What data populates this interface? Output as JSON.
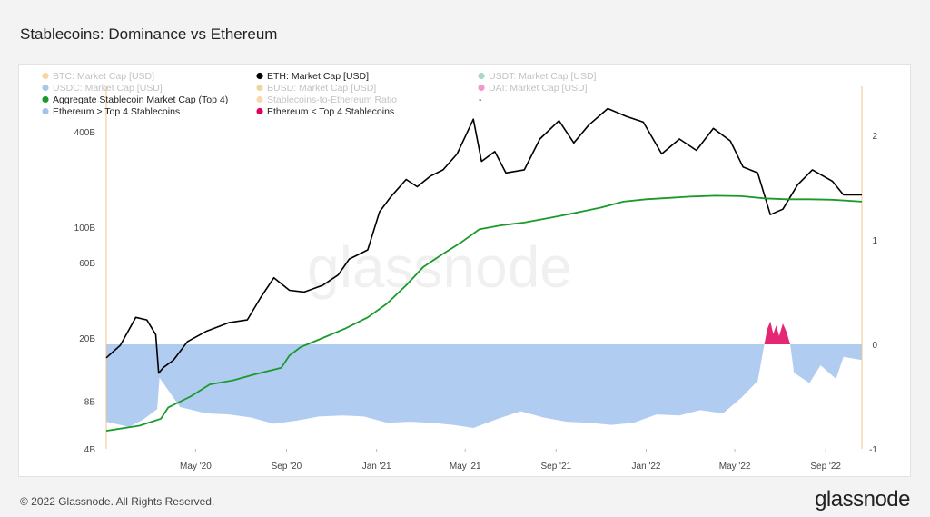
{
  "title": "Stablecoins: Dominance vs Ethereum",
  "footer": {
    "copyright": "© 2022 Glassnode. All Rights Reserved.",
    "brand": "glassnode"
  },
  "watermark": "glassnode",
  "chart_data": {
    "type": "line",
    "title": "Stablecoins: Dominance vs Ethereum",
    "legend_position": "top-left",
    "legend": [
      {
        "label": "BTC: Market Cap [USD]",
        "color": "#f7931a",
        "active": false
      },
      {
        "label": "ETH: Market Cap [USD]",
        "color": "#000000",
        "active": true
      },
      {
        "label": "USDT: Market Cap [USD]",
        "color": "#26a17b",
        "active": false
      },
      {
        "label": "USDC: Market Cap [USD]",
        "color": "#2775ca",
        "active": false
      },
      {
        "label": "BUSD: Market Cap [USD]",
        "color": "#c9a100",
        "active": false
      },
      {
        "label": "DAI: Market Cap [USD]",
        "color": "#e6007a",
        "active": false
      },
      {
        "label": "Aggregate Stablecoin Market Cap (Top 4)",
        "color": "#1a9a2a",
        "active": true
      },
      {
        "label": "Stablecoins-to-Ethereum Ratio",
        "color": "#e8a23a",
        "active": false
      },
      {
        "label": "-",
        "color": "",
        "active": true
      },
      {
        "label": "Ethereum > Top 4 Stablecoins",
        "color": "#a3c3ee",
        "active": true
      },
      {
        "label": "Ethereum < Top 4 Stablecoins",
        "color": "#e0005c",
        "active": true
      }
    ],
    "x_ticks": [
      "May '20",
      "Sep '20",
      "Jan '21",
      "May '21",
      "Sep '21",
      "Jan '22",
      "May '22",
      "Sep '22"
    ],
    "x_tick_dates": [
      "2020-05-01",
      "2020-09-01",
      "2021-01-01",
      "2021-05-01",
      "2021-09-01",
      "2022-01-01",
      "2022-05-01",
      "2022-09-01"
    ],
    "x_range": [
      "2020-01-01",
      "2022-10-20"
    ],
    "y_left": {
      "scale": "log",
      "ticks": [
        "4B",
        "8B",
        "20B",
        "60B",
        "100B",
        "400B"
      ],
      "tick_values": [
        4,
        8,
        20,
        60,
        100,
        400
      ],
      "unit": "B"
    },
    "y_right": {
      "scale": "linear",
      "ticks": [
        "-1",
        "0",
        "1",
        "2"
      ],
      "tick_values": [
        -1,
        0,
        1,
        2
      ],
      "range": [
        -1,
        2.25
      ]
    },
    "series": [
      {
        "name": "ETH: Market Cap [USD]",
        "axis": "left",
        "color": "#000000",
        "points": [
          [
            "2020-01-01",
            15
          ],
          [
            "2020-01-20",
            18
          ],
          [
            "2020-02-10",
            27
          ],
          [
            "2020-02-25",
            26
          ],
          [
            "2020-03-08",
            21
          ],
          [
            "2020-03-12",
            12
          ],
          [
            "2020-03-18",
            13
          ],
          [
            "2020-04-01",
            14.5
          ],
          [
            "2020-04-20",
            19
          ],
          [
            "2020-05-15",
            22
          ],
          [
            "2020-06-15",
            25
          ],
          [
            "2020-07-10",
            26
          ],
          [
            "2020-07-28",
            36
          ],
          [
            "2020-08-15",
            48
          ],
          [
            "2020-09-05",
            40
          ],
          [
            "2020-09-25",
            39
          ],
          [
            "2020-10-20",
            43
          ],
          [
            "2020-11-10",
            50
          ],
          [
            "2020-11-25",
            63
          ],
          [
            "2020-12-20",
            72
          ],
          [
            "2021-01-05",
            125
          ],
          [
            "2021-01-20",
            155
          ],
          [
            "2021-02-10",
            200
          ],
          [
            "2021-02-25",
            180
          ],
          [
            "2021-03-15",
            210
          ],
          [
            "2021-04-01",
            230
          ],
          [
            "2021-04-20",
            290
          ],
          [
            "2021-05-12",
            480
          ],
          [
            "2021-05-23",
            260
          ],
          [
            "2021-06-10",
            300
          ],
          [
            "2021-06-25",
            220
          ],
          [
            "2021-07-20",
            230
          ],
          [
            "2021-08-10",
            360
          ],
          [
            "2021-09-05",
            470
          ],
          [
            "2021-09-25",
            340
          ],
          [
            "2021-10-15",
            440
          ],
          [
            "2021-11-10",
            560
          ],
          [
            "2021-12-05",
            500
          ],
          [
            "2021-12-28",
            460
          ],
          [
            "2022-01-22",
            290
          ],
          [
            "2022-02-15",
            360
          ],
          [
            "2022-03-10",
            305
          ],
          [
            "2022-04-02",
            420
          ],
          [
            "2022-04-25",
            350
          ],
          [
            "2022-05-12",
            240
          ],
          [
            "2022-06-01",
            220
          ],
          [
            "2022-06-18",
            120
          ],
          [
            "2022-07-05",
            130
          ],
          [
            "2022-07-25",
            185
          ],
          [
            "2022-08-14",
            230
          ],
          [
            "2022-09-10",
            195
          ],
          [
            "2022-09-25",
            160
          ],
          [
            "2022-10-20",
            160
          ]
        ]
      },
      {
        "name": "Aggregate Stablecoin Market Cap (Top 4)",
        "axis": "left",
        "color": "#1a9a2a",
        "points": [
          [
            "2020-01-01",
            5.2
          ],
          [
            "2020-02-15",
            5.6
          ],
          [
            "2020-03-15",
            6.2
          ],
          [
            "2020-03-25",
            7.3
          ],
          [
            "2020-04-25",
            8.6
          ],
          [
            "2020-05-20",
            10.2
          ],
          [
            "2020-06-20",
            10.8
          ],
          [
            "2020-07-20",
            11.8
          ],
          [
            "2020-08-25",
            13
          ],
          [
            "2020-09-05",
            15.5
          ],
          [
            "2020-09-20",
            17.5
          ],
          [
            "2020-10-20",
            20
          ],
          [
            "2020-11-20",
            23
          ],
          [
            "2020-12-20",
            27
          ],
          [
            "2021-01-15",
            33
          ],
          [
            "2021-02-10",
            43
          ],
          [
            "2021-03-05",
            56
          ],
          [
            "2021-03-30",
            67
          ],
          [
            "2021-04-25",
            80
          ],
          [
            "2021-05-20",
            97
          ],
          [
            "2021-06-20",
            103
          ],
          [
            "2021-07-20",
            107
          ],
          [
            "2021-08-25",
            115
          ],
          [
            "2021-09-30",
            124
          ],
          [
            "2021-11-01",
            133
          ],
          [
            "2021-12-01",
            145
          ],
          [
            "2022-01-01",
            150
          ],
          [
            "2022-02-01",
            153
          ],
          [
            "2022-03-01",
            156
          ],
          [
            "2022-04-05",
            158
          ],
          [
            "2022-05-10",
            157
          ],
          [
            "2022-06-10",
            152
          ],
          [
            "2022-07-10",
            150
          ],
          [
            "2022-08-10",
            150
          ],
          [
            "2022-09-10",
            149
          ],
          [
            "2022-10-20",
            145
          ]
        ]
      },
      {
        "name": "Ethereum > Top 4 Stablecoins",
        "axis": "right",
        "color": "#a3c3ee",
        "points": [
          [
            "2020-01-01",
            -0.74
          ],
          [
            "2020-02-01",
            -0.79
          ],
          [
            "2020-02-20",
            -0.72
          ],
          [
            "2020-03-10",
            -0.62
          ],
          [
            "2020-03-13",
            -0.32
          ],
          [
            "2020-04-10",
            -0.6
          ],
          [
            "2020-05-15",
            -0.66
          ],
          [
            "2020-06-15",
            -0.67
          ],
          [
            "2020-07-15",
            -0.7
          ],
          [
            "2020-08-15",
            -0.76
          ],
          [
            "2020-09-15",
            -0.73
          ],
          [
            "2020-10-15",
            -0.69
          ],
          [
            "2020-11-15",
            -0.68
          ],
          [
            "2020-12-15",
            -0.69
          ],
          [
            "2021-01-15",
            -0.75
          ],
          [
            "2021-02-15",
            -0.74
          ],
          [
            "2021-03-15",
            -0.75
          ],
          [
            "2021-04-15",
            -0.77
          ],
          [
            "2021-05-12",
            -0.8
          ],
          [
            "2021-06-15",
            -0.71
          ],
          [
            "2021-07-15",
            -0.64
          ],
          [
            "2021-08-15",
            -0.7
          ],
          [
            "2021-09-15",
            -0.74
          ],
          [
            "2021-10-15",
            -0.75
          ],
          [
            "2021-11-15",
            -0.77
          ],
          [
            "2021-12-15",
            -0.75
          ],
          [
            "2022-01-15",
            -0.67
          ],
          [
            "2022-02-15",
            -0.68
          ],
          [
            "2022-03-15",
            -0.63
          ],
          [
            "2022-04-15",
            -0.66
          ],
          [
            "2022-05-10",
            -0.51
          ],
          [
            "2022-06-01",
            -0.35
          ],
          [
            "2022-06-10",
            0
          ],
          [
            "2022-07-15",
            0
          ],
          [
            "2022-07-20",
            -0.27
          ],
          [
            "2022-08-10",
            -0.37
          ],
          [
            "2022-08-25",
            -0.2
          ],
          [
            "2022-09-15",
            -0.33
          ],
          [
            "2022-09-25",
            -0.12
          ],
          [
            "2022-10-20",
            -0.15
          ]
        ]
      },
      {
        "name": "Ethereum < Top 4 Stablecoins",
        "axis": "right",
        "color": "#e0005c",
        "points": [
          [
            "2022-06-10",
            0
          ],
          [
            "2022-06-14",
            0.15
          ],
          [
            "2022-06-18",
            0.22
          ],
          [
            "2022-06-22",
            0.1
          ],
          [
            "2022-06-26",
            0.18
          ],
          [
            "2022-06-30",
            0.08
          ],
          [
            "2022-07-05",
            0.2
          ],
          [
            "2022-07-10",
            0.12
          ],
          [
            "2022-07-15",
            0
          ]
        ]
      }
    ]
  }
}
